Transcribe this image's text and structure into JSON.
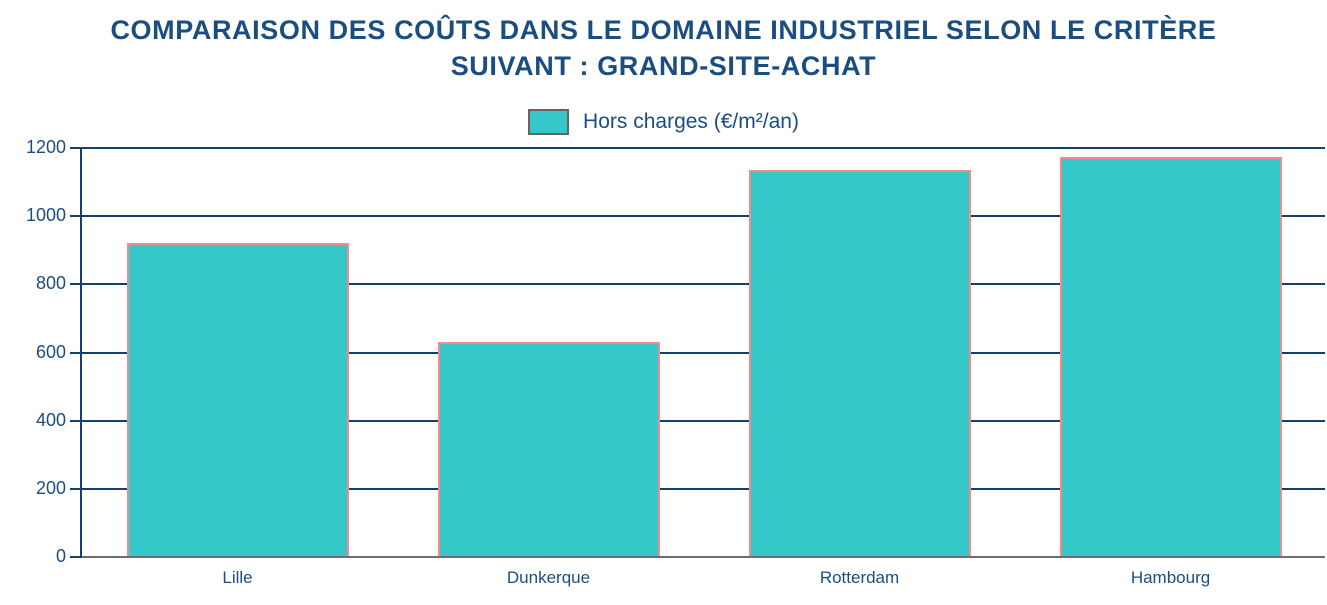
{
  "header": {
    "title_line1": "COMPARAISON DES COÛTS DANS LE DOMAINE INDUSTRIEL SELON LE CRITÈRE",
    "title_line2": "SUIVANT : GRAND-SITE-ACHAT"
  },
  "chart_data": {
    "type": "bar",
    "title": "COMPARAISON DES COÛTS DANS LE DOMAINE INDUSTRIEL SELON LE CRITÈRE SUIVANT : GRAND-SITE-ACHAT",
    "categories": [
      "Lille",
      "Dunkerque",
      "Rotterdam",
      "Hambourg"
    ],
    "series": [
      {
        "name": "Hors charges (€/m²/an)",
        "values": [
          920,
          630,
          1135,
          1175
        ]
      }
    ],
    "xlabel": "",
    "ylabel": "",
    "ylim": [
      0,
      1200
    ],
    "yticks": [
      0,
      200,
      400,
      600,
      800,
      1000,
      1200
    ],
    "grid": true,
    "legend_position": "top-center",
    "colors": {
      "bar_fill": "#35c8c8",
      "bar_border": "#f28b8b",
      "text_navy": "#1b4e80",
      "grid_line": "#14406e",
      "baseline_gray": "#6e6e6e",
      "legend_swatch_border": "#6e6060"
    }
  }
}
